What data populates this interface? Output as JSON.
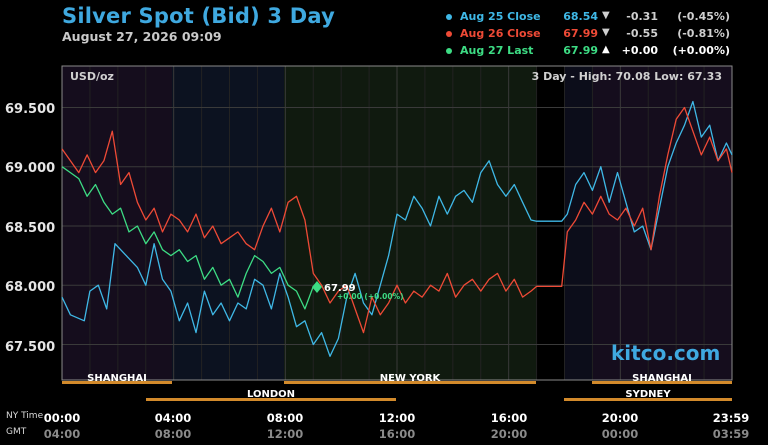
{
  "header": {
    "title": "Silver Spot (Bid) 3 Day",
    "date": "August 27, 2026 09:09"
  },
  "legend": [
    {
      "label": "Aug 25 Close",
      "price": "68.54",
      "arrow": "▼",
      "change": "-0.31",
      "pct": "(-0.45%)",
      "color": "#3fb8e6"
    },
    {
      "label": "Aug 26 Close",
      "price": "67.99",
      "arrow": "▼",
      "change": "-0.55",
      "pct": "(-0.81%)",
      "color": "#ee4a36"
    },
    {
      "label": "Aug 27 Last",
      "price": "67.99",
      "arrow": "▲",
      "change": "+0.00",
      "pct": "(+0.00%)",
      "color": "#3ddc84"
    }
  ],
  "units": "USD/oz",
  "hilo": "3 Day - High: 70.08  Low: 67.33",
  "watermark": "kitco.com",
  "time_labels": {
    "ny": "NY Time",
    "gmt": "GMT"
  },
  "last_tag": {
    "price": "67.99",
    "change": "+0.00 (+0.00%)"
  },
  "sessions": {
    "top": [
      "SHANGHAI",
      "NEW YORK",
      "SHANGHAI"
    ],
    "bottom": [
      "LONDON",
      "SYDNEY"
    ]
  },
  "chart_data": {
    "type": "line",
    "title": "Silver Spot (Bid) 3 Day",
    "ylabel": "USD/oz",
    "ylim": [
      67.2,
      69.85
    ],
    "xlim": [
      0,
      24
    ],
    "grid": true,
    "y_ticks": [
      "69.500",
      "69.000",
      "68.500",
      "68.000",
      "67.500"
    ],
    "x_ticks_ny": [
      "00:00",
      "04:00",
      "08:00",
      "12:00",
      "16:00",
      "20:00",
      "23:59"
    ],
    "x_ticks_gmt": [
      "04:00",
      "08:00",
      "12:00",
      "16:00",
      "20:00",
      "00:00",
      "03:59"
    ],
    "series": [
      {
        "name": "Aug 25 Close",
        "color": "#3fb8e6",
        "x": [
          0,
          0.3,
          0.8,
          1.0,
          1.3,
          1.6,
          1.9,
          2.3,
          2.7,
          3.0,
          3.3,
          3.6,
          3.9,
          4.2,
          4.5,
          4.8,
          5.1,
          5.4,
          5.7,
          6.0,
          6.3,
          6.6,
          6.9,
          7.2,
          7.5,
          7.8,
          8.1,
          8.4,
          8.7,
          9.0,
          9.3,
          9.6,
          9.9,
          10.2,
          10.5,
          10.8,
          11.1,
          11.4,
          11.7,
          12.0,
          12.3,
          12.6,
          12.9,
          13.2,
          13.5,
          13.8,
          14.1,
          14.4,
          14.7,
          15.0,
          15.3,
          15.6,
          15.9,
          16.2,
          16.5,
          16.8,
          17.0,
          17.5,
          17.9,
          18.1,
          18.4,
          18.7,
          19.0,
          19.3,
          19.6,
          19.9,
          20.2,
          20.5,
          20.8,
          21.1,
          21.4,
          21.7,
          22.0,
          22.3,
          22.6,
          22.9,
          23.2,
          23.5,
          23.8,
          24.0
        ],
        "values": [
          67.9,
          67.75,
          67.7,
          67.95,
          68.0,
          67.8,
          68.35,
          68.25,
          68.15,
          68.0,
          68.35,
          68.05,
          67.95,
          67.7,
          67.85,
          67.6,
          67.95,
          67.75,
          67.85,
          67.7,
          67.85,
          67.8,
          68.05,
          68.0,
          67.8,
          68.1,
          67.9,
          67.65,
          67.7,
          67.5,
          67.6,
          67.4,
          67.55,
          67.9,
          68.1,
          67.85,
          67.75,
          68.0,
          68.25,
          68.6,
          68.55,
          68.75,
          68.65,
          68.5,
          68.75,
          68.6,
          68.75,
          68.8,
          68.7,
          68.95,
          69.05,
          68.85,
          68.75,
          68.85,
          68.7,
          68.55,
          68.54,
          68.54,
          68.54,
          68.6,
          68.85,
          68.95,
          68.8,
          69.0,
          68.7,
          68.95,
          68.7,
          68.45,
          68.5,
          68.3,
          68.65,
          69.0,
          69.2,
          69.35,
          69.55,
          69.25,
          69.35,
          69.05,
          69.2,
          69.1
        ]
      },
      {
        "name": "Aug 26 Close",
        "color": "#ee4a36",
        "x": [
          0,
          0.3,
          0.6,
          0.9,
          1.2,
          1.5,
          1.8,
          2.1,
          2.4,
          2.7,
          3.0,
          3.3,
          3.6,
          3.9,
          4.2,
          4.5,
          4.8,
          5.1,
          5.4,
          5.7,
          6.0,
          6.3,
          6.6,
          6.9,
          7.2,
          7.5,
          7.8,
          8.1,
          8.4,
          8.7,
          9.0,
          9.3,
          9.6,
          9.9,
          10.2,
          10.5,
          10.8,
          11.1,
          11.4,
          11.7,
          12.0,
          12.3,
          12.6,
          12.9,
          13.2,
          13.5,
          13.8,
          14.1,
          14.4,
          14.7,
          15.0,
          15.3,
          15.6,
          15.9,
          16.2,
          16.5,
          16.8,
          17.0,
          17.5,
          17.9,
          18.1,
          18.4,
          18.7,
          19.0,
          19.3,
          19.6,
          19.9,
          20.2,
          20.5,
          20.8,
          21.1,
          21.4,
          21.7,
          22.0,
          22.3,
          22.6,
          22.9,
          23.2,
          23.5,
          23.8,
          24.0
        ],
        "values": [
          69.15,
          69.05,
          68.95,
          69.1,
          68.95,
          69.05,
          69.3,
          68.85,
          68.95,
          68.7,
          68.55,
          68.65,
          68.45,
          68.6,
          68.55,
          68.45,
          68.6,
          68.4,
          68.5,
          68.35,
          68.4,
          68.45,
          68.35,
          68.3,
          68.5,
          68.65,
          68.45,
          68.7,
          68.75,
          68.55,
          68.1,
          68.0,
          67.85,
          67.95,
          68.0,
          67.8,
          67.6,
          67.9,
          67.75,
          67.85,
          68.0,
          67.85,
          67.95,
          67.9,
          68.0,
          67.95,
          68.1,
          67.9,
          68.0,
          68.05,
          67.95,
          68.05,
          68.1,
          67.95,
          68.05,
          67.9,
          67.95,
          67.99,
          67.99,
          67.99,
          68.45,
          68.55,
          68.7,
          68.6,
          68.75,
          68.6,
          68.55,
          68.65,
          68.5,
          68.65,
          68.3,
          68.75,
          69.1,
          69.4,
          69.5,
          69.3,
          69.1,
          69.25,
          69.05,
          69.15,
          68.95
        ]
      },
      {
        "name": "Aug 27 Last",
        "color": "#3ddc84",
        "x": [
          0,
          0.3,
          0.6,
          0.9,
          1.2,
          1.5,
          1.8,
          2.1,
          2.4,
          2.7,
          3.0,
          3.3,
          3.6,
          3.9,
          4.2,
          4.5,
          4.8,
          5.1,
          5.4,
          5.7,
          6.0,
          6.3,
          6.6,
          6.9,
          7.2,
          7.5,
          7.8,
          8.1,
          8.4,
          8.7,
          9.0
        ],
        "values": [
          69.0,
          68.95,
          68.9,
          68.75,
          68.85,
          68.7,
          68.6,
          68.65,
          68.45,
          68.5,
          68.35,
          68.45,
          68.3,
          68.25,
          68.3,
          68.2,
          68.25,
          68.05,
          68.15,
          68.0,
          68.05,
          67.9,
          68.1,
          68.25,
          68.2,
          68.1,
          68.15,
          68.0,
          67.95,
          67.8,
          67.99
        ]
      }
    ]
  }
}
